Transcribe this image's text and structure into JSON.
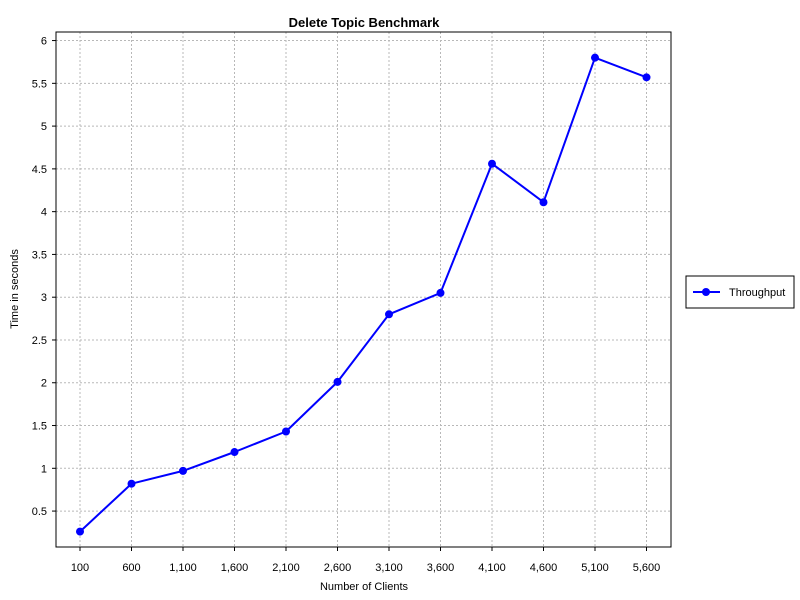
{
  "chart_data": {
    "type": "line",
    "title": "Delete Topic Benchmark",
    "xlabel": "Number of Clients",
    "ylabel": "Time in seconds",
    "categories": [
      "100",
      "600",
      "1,100",
      "1,600",
      "2,100",
      "2,600",
      "3,100",
      "3,600",
      "4,100",
      "4,600",
      "5,100",
      "5,600"
    ],
    "ylim": [
      0.08,
      6.1
    ],
    "yticks": [
      0.5,
      1,
      1.5,
      2,
      2.5,
      3,
      3.5,
      4,
      4.5,
      5,
      5.5,
      6
    ],
    "ytick_labels": [
      "0.5",
      "1",
      "1.5",
      "2",
      "2.5",
      "3",
      "3.5",
      "4",
      "4.5",
      "5",
      "5.5",
      "6"
    ],
    "grid": true,
    "legend_position": "right",
    "series": [
      {
        "name": "Throughput",
        "color": "#0000ff",
        "values": [
          0.26,
          0.82,
          0.97,
          1.19,
          1.43,
          2.01,
          2.8,
          3.05,
          4.56,
          4.11,
          5.8,
          5.57
        ]
      }
    ]
  }
}
